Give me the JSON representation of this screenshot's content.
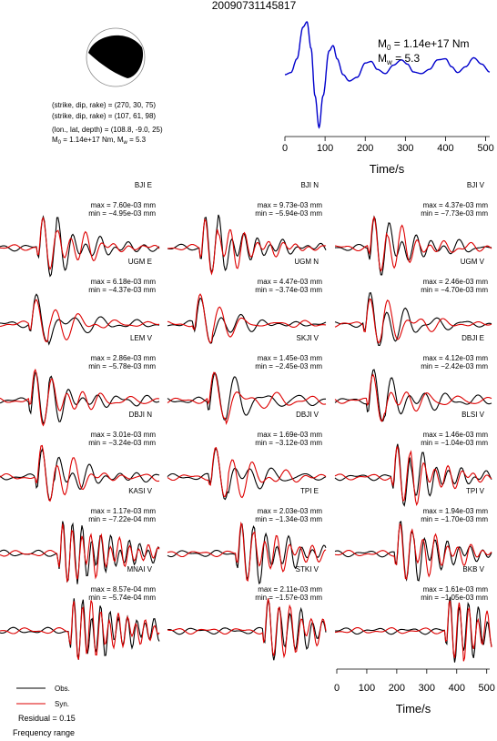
{
  "header": {
    "event_id": "20090731145817"
  },
  "focal_mechanism": {
    "plane1": "(strike, dip, rake) = (270, 30, 75)",
    "plane2": "(strike, dip, rake) = (107, 61, 98)",
    "location": "(lon., lat, depth) = (108.8, -9.0, 25)",
    "moment_line": "M0 = 1.14e+17 Nm, Mw = 5.3",
    "moment_label": "M",
    "moment_sub": "0",
    "moment_value": " = 1.14e+17 Nm, M",
    "mag_sub": "w",
    "mag_value": " = 5.3",
    "beachball_fill": "#000000"
  },
  "stf_chart": {
    "m0_label": "M",
    "m0_sub": "0",
    "m0_value": " = 1.14e+17 Nm",
    "mw_label": "M",
    "mw_sub": "w",
    "mw_value": " = 5.3",
    "xlabel": "Time/s",
    "line_color": "#0000cc"
  },
  "chart_data": [
    {
      "type": "line",
      "title": "",
      "xlabel": "Time/s",
      "xlim": [
        0,
        510
      ],
      "xticks": [
        0,
        100,
        200,
        300,
        400,
        500
      ],
      "series": [
        {
          "x": [
            0,
            15,
            30,
            45,
            55,
            65,
            75,
            85,
            95,
            110,
            120,
            130,
            145,
            160,
            180,
            200,
            215,
            230,
            250,
            270,
            290,
            305,
            320,
            340,
            360,
            380,
            400,
            415,
            430,
            450,
            470,
            490,
            510
          ],
          "y": [
            0,
            0.04,
            0.3,
            0.9,
            1.0,
            0.5,
            -0.4,
            -1.0,
            -0.4,
            0.45,
            0.55,
            0.3,
            0.0,
            -0.12,
            -0.05,
            0.22,
            0.25,
            0.1,
            0.02,
            0.18,
            0.28,
            0.2,
            0.05,
            0.02,
            0.1,
            0.28,
            0.3,
            0.15,
            0.04,
            0.15,
            0.32,
            0.2,
            0.05
          ]
        }
      ]
    },
    {
      "type": "line",
      "title": "",
      "xlabel": "Time/s",
      "xlim": [
        0,
        510
      ],
      "xticks": [
        0,
        100,
        200,
        300,
        400,
        500
      ],
      "legend": "bottom-left",
      "series": [
        {
          "name": "Obs.",
          "color": "#000000"
        },
        {
          "name": "Syn.",
          "color": "#dd0000"
        }
      ],
      "panels": [
        {
          "station": "BJI E",
          "max": "max = 7.60e-03 mm",
          "min": "min = −4.95e-03 mm",
          "onset": 0.25,
          "amp": 1.0,
          "freq": 1.0
        },
        {
          "station": "BJI N",
          "max": "max = 9.73e-03 mm",
          "min": "min = −5.94e-03 mm",
          "onset": 0.22,
          "amp": 1.0,
          "freq": 1.1
        },
        {
          "station": "BJI V",
          "max": "max = 4.37e-03 mm",
          "min": "min = −7.73e-03 mm",
          "onset": 0.23,
          "amp": 1.0,
          "freq": 1.0
        },
        {
          "station": "UGM E",
          "max": "max = 6.18e-03 mm",
          "min": "min = −4.37e-03 mm",
          "onset": 0.2,
          "amp": 1.0,
          "freq": 0.7
        },
        {
          "station": "UGM N",
          "max": "max = 4.47e-03 mm",
          "min": "min = −3.74e-03 mm",
          "onset": 0.18,
          "amp": 1.0,
          "freq": 0.7
        },
        {
          "station": "UGM V",
          "max": "max = 2.46e-03 mm",
          "min": "min = −4.70e-03 mm",
          "onset": 0.2,
          "amp": 1.0,
          "freq": 0.8
        },
        {
          "station": "LEM V",
          "max": "max = 2.86e-03 mm",
          "min": "min = −5.78e-03 mm",
          "onset": 0.2,
          "amp": 1.0,
          "freq": 0.9
        },
        {
          "station": "SKJI V",
          "max": "max = 1.45e-03 mm",
          "min": "min = −2.45e-03 mm",
          "onset": 0.27,
          "amp": 1.0,
          "freq": 0.7
        },
        {
          "station": "DBJI E",
          "max": "max = 4.12e-03 mm",
          "min": "min = −2.42e-03 mm",
          "onset": 0.22,
          "amp": 1.0,
          "freq": 0.8
        },
        {
          "station": "DBJI N",
          "max": "max = 3.01e-03 mm",
          "min": "min = −3.24e-03 mm",
          "onset": 0.24,
          "amp": 1.0,
          "freq": 0.9
        },
        {
          "station": "DBJI V",
          "max": "max = 1.69e-03 mm",
          "min": "min = −3.12e-03 mm",
          "onset": 0.28,
          "amp": 1.0,
          "freq": 0.8
        },
        {
          "station": "BLSI V",
          "max": "max = 1.46e-03 mm",
          "min": "min = −1.04e-03 mm",
          "onset": 0.38,
          "amp": 1.0,
          "freq": 1.1
        },
        {
          "station": "KASI V",
          "max": "max = 1.17e-03 mm",
          "min": "min = −7.22e-04 mm",
          "onset": 0.38,
          "amp": 1.0,
          "freq": 1.5
        },
        {
          "station": "TPI E",
          "max": "max = 2.03e-03 mm",
          "min": "min = −1.34e-03 mm",
          "onset": 0.45,
          "amp": 1.0,
          "freq": 1.2
        },
        {
          "station": "TPI V",
          "max": "max = 1.94e-03 mm",
          "min": "min = −1.70e-03 mm",
          "onset": 0.4,
          "amp": 1.0,
          "freq": 1.2
        },
        {
          "station": "MNAI V",
          "max": "max = 8.57e-04 mm",
          "min": "min = −5.74e-04 mm",
          "onset": 0.45,
          "amp": 1.0,
          "freq": 1.6
        },
        {
          "station": "STKI V",
          "max": "max = 2.11e-03 mm",
          "min": "min = −1.57e-03 mm",
          "onset": 0.62,
          "amp": 1.0,
          "freq": 1.3
        },
        {
          "station": "BKB V",
          "max": "max = 1.61e-03 mm",
          "min": "min = −1.05e-03 mm",
          "onset": 0.72,
          "amp": 1.0,
          "freq": 1.5
        }
      ]
    }
  ],
  "legend": {
    "obs_label": "Obs.",
    "syn_label": "Syn.",
    "residual": "Residual = 0.15",
    "frequency": "Frequency range"
  }
}
